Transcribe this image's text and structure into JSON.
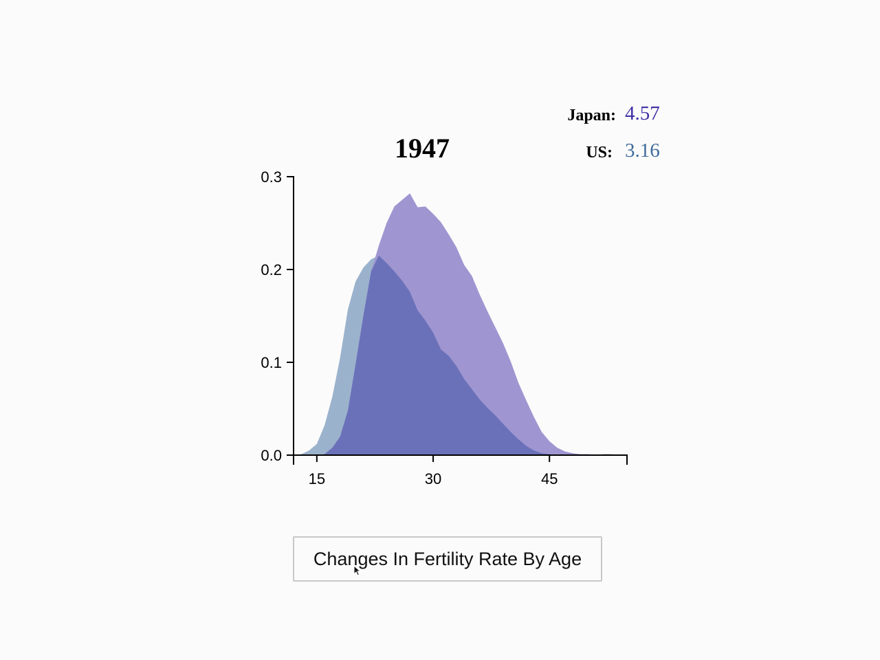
{
  "chart_data": {
    "type": "area",
    "title": "1947",
    "xlabel": "",
    "ylabel": "",
    "xlim": [
      12,
      55
    ],
    "ylim": [
      0,
      0.3
    ],
    "x_ticks": [
      15,
      30,
      45
    ],
    "y_ticks": [
      0.0,
      0.1,
      0.2,
      0.3
    ],
    "grid": false,
    "legend_position": "top-right",
    "legend": [
      {
        "label": "Japan:",
        "value": "4.57",
        "color": "#3f2fa6"
      },
      {
        "label": "US:",
        "value": "3.16",
        "color": "#3f6c9c"
      }
    ],
    "x": [
      12,
      13,
      14,
      15,
      16,
      17,
      18,
      19,
      20,
      21,
      22,
      23,
      24,
      25,
      26,
      27,
      28,
      29,
      30,
      31,
      32,
      33,
      34,
      35,
      36,
      37,
      38,
      39,
      40,
      41,
      42,
      43,
      44,
      45,
      46,
      47,
      48,
      49,
      50,
      51,
      52,
      53,
      54,
      55
    ],
    "series": [
      {
        "name": "US",
        "color": "#9bb2cc",
        "values": [
          0,
          0.001,
          0.005,
          0.012,
          0.032,
          0.063,
          0.105,
          0.157,
          0.187,
          0.202,
          0.211,
          0.215,
          0.207,
          0.198,
          0.188,
          0.176,
          0.156,
          0.145,
          0.132,
          0.114,
          0.107,
          0.096,
          0.082,
          0.071,
          0.06,
          0.051,
          0.043,
          0.034,
          0.025,
          0.017,
          0.01,
          0.005,
          0.002,
          0.001,
          0,
          0,
          0,
          0,
          0,
          0,
          0,
          0,
          0,
          0
        ]
      },
      {
        "name": "Japan",
        "color": "#9f96d1",
        "values": [
          0,
          0,
          0,
          0,
          0.001,
          0.008,
          0.02,
          0.048,
          0.098,
          0.15,
          0.198,
          0.226,
          0.25,
          0.268,
          0.275,
          0.282,
          0.267,
          0.268,
          0.26,
          0.251,
          0.238,
          0.224,
          0.205,
          0.193,
          0.173,
          0.155,
          0.138,
          0.121,
          0.101,
          0.078,
          0.059,
          0.041,
          0.025,
          0.015,
          0.008,
          0.004,
          0.002,
          0.001,
          0.001,
          0,
          0.001,
          0.001,
          0,
          0
        ]
      }
    ],
    "overlap_color": "#6b71b9"
  },
  "controls": {
    "story_button": "Changes In Fertility Rate By Age"
  }
}
